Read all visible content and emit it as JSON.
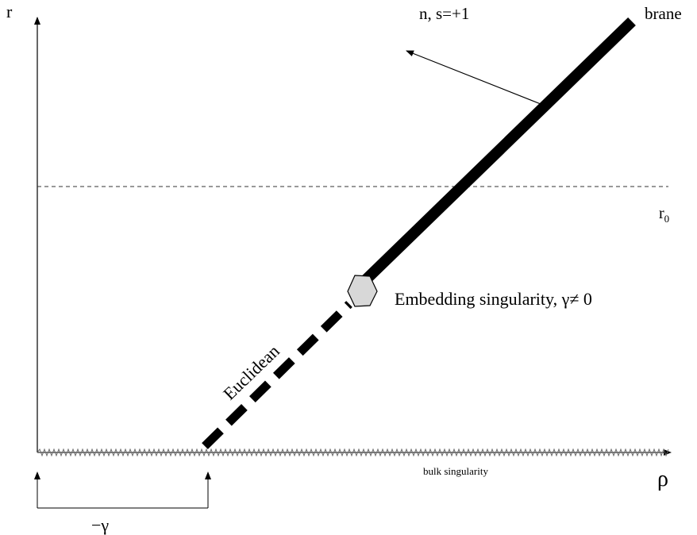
{
  "labels": {
    "r_axis": "r",
    "rho_axis": "ρ",
    "brane": "brane",
    "normal": "n, s=+1",
    "r0_main": "r",
    "r0_sub": "0",
    "embedding": "Embedding singularity, γ≠ 0",
    "euclidean": "Euclidean",
    "bulk": "bulk singularity",
    "gamma": "−γ"
  }
}
